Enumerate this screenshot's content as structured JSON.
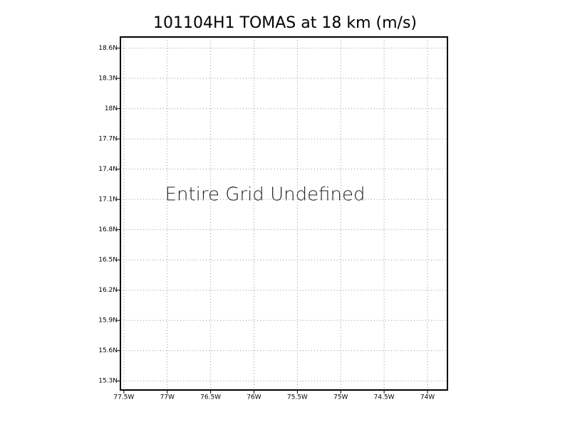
{
  "chart_data": {
    "type": "map",
    "title": "101104H1 TOMAS at 18 km (m/s)",
    "annotation": "Entire Grid Undefined",
    "xlim": [
      -77.54,
      -73.77
    ],
    "ylim": [
      15.21,
      18.71
    ],
    "xticks": [
      {
        "value": -77.5,
        "label": "77.5W"
      },
      {
        "value": -77,
        "label": "77W"
      },
      {
        "value": -76.5,
        "label": "76.5W"
      },
      {
        "value": -76,
        "label": "76W"
      },
      {
        "value": -75.5,
        "label": "75.5W"
      },
      {
        "value": -75,
        "label": "75W"
      },
      {
        "value": -74.5,
        "label": "74.5W"
      },
      {
        "value": -74,
        "label": "74W"
      }
    ],
    "yticks": [
      {
        "value": 15.3,
        "label": "15.3N"
      },
      {
        "value": 15.6,
        "label": "15.6N"
      },
      {
        "value": 15.9,
        "label": "15.9N"
      },
      {
        "value": 16.2,
        "label": "16.2N"
      },
      {
        "value": 16.5,
        "label": "16.5N"
      },
      {
        "value": 16.8,
        "label": "16.8N"
      },
      {
        "value": 17.1,
        "label": "17.1N"
      },
      {
        "value": 17.4,
        "label": "17.4N"
      },
      {
        "value": 17.7,
        "label": "17.7N"
      },
      {
        "value": 18,
        "label": "18N"
      },
      {
        "value": 18.3,
        "label": "18.3N"
      },
      {
        "value": 18.6,
        "label": "18.6N"
      }
    ],
    "grid": true
  }
}
